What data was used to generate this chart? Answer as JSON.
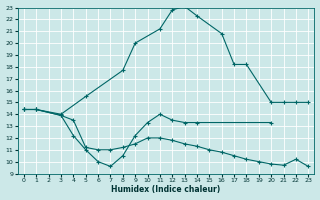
{
  "xlabel": "Humidex (Indice chaleur)",
  "background_color": "#cce8e8",
  "grid_color": "#ffffff",
  "line_color": "#006666",
  "xlim": [
    -0.5,
    23.5
  ],
  "ylim": [
    9,
    23
  ],
  "xticks": [
    0,
    1,
    2,
    3,
    4,
    5,
    6,
    7,
    8,
    9,
    10,
    11,
    12,
    13,
    14,
    15,
    16,
    17,
    18,
    19,
    20,
    21,
    22,
    23
  ],
  "yticks": [
    9,
    10,
    11,
    12,
    13,
    14,
    15,
    16,
    17,
    18,
    19,
    20,
    21,
    22,
    23
  ],
  "line_arch_x": [
    0,
    1,
    3,
    5,
    8,
    9,
    11,
    12,
    13,
    14,
    16,
    17,
    18,
    20,
    21,
    22,
    23
  ],
  "line_arch_y": [
    14.4,
    14.4,
    14.0,
    15.5,
    17.7,
    20.0,
    21.2,
    22.8,
    23.1,
    22.3,
    20.8,
    18.2,
    18.2,
    15.0,
    15.0,
    15.0,
    15.0
  ],
  "line_ushape_x": [
    0,
    1,
    3,
    4,
    5,
    6,
    7,
    8,
    9,
    10,
    11,
    12,
    13,
    14,
    20
  ],
  "line_ushape_y": [
    14.4,
    14.4,
    13.9,
    12.2,
    11.0,
    10.0,
    9.6,
    10.5,
    12.2,
    13.3,
    14.0,
    13.5,
    13.3,
    13.3,
    13.3
  ],
  "line_decline_x": [
    0,
    1,
    3,
    4,
    5,
    6,
    7,
    8,
    9,
    10,
    11,
    12,
    13,
    14,
    15,
    16,
    17,
    18,
    19,
    20,
    21,
    22,
    23
  ],
  "line_decline_y": [
    14.4,
    14.4,
    13.9,
    13.5,
    11.2,
    11.0,
    11.0,
    11.2,
    11.5,
    12.0,
    12.0,
    11.8,
    11.5,
    11.3,
    11.0,
    10.8,
    10.5,
    10.2,
    10.0,
    9.8,
    9.7,
    10.2,
    9.6
  ]
}
